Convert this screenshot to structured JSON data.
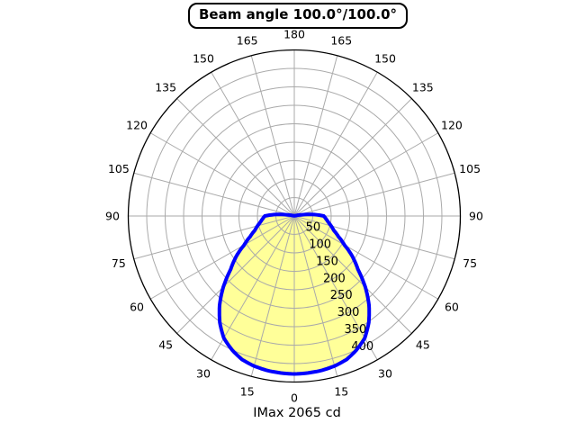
{
  "title": "Beam angle 100.0°/100.0°",
  "caption": "IMax 2065 cd",
  "chart_data": {
    "type": "line",
    "subtype": "polar-intensity-distribution",
    "title": "Beam angle 100.0°/100.0°",
    "annotation": "IMax 2065 cd",
    "beam_angle_deg_c0": 100.0,
    "beam_angle_deg_c90": 100.0,
    "imax_cd": 2065,
    "angle_ticks": [
      0,
      15,
      30,
      45,
      60,
      75,
      90,
      105,
      120,
      135,
      150,
      165,
      180
    ],
    "angle_ticks_mirrored": true,
    "radial_ticks": [
      50,
      100,
      150,
      200,
      250,
      300,
      350,
      400
    ],
    "radial_max": 450,
    "grid": true,
    "symmetric": true,
    "profile": {
      "angles_deg": [
        0,
        5,
        10,
        15,
        20,
        25,
        30,
        35,
        40,
        45,
        50,
        55,
        60,
        65,
        70,
        75,
        80,
        85,
        90,
        95,
        100,
        105,
        110,
        120,
        135,
        150,
        165,
        180
      ],
      "values": [
        428,
        427,
        425,
        421,
        414,
        400,
        382,
        352,
        315,
        272,
        225,
        193,
        157,
        132,
        114,
        103,
        93,
        86,
        80,
        48,
        16,
        5,
        2,
        1,
        1,
        1,
        1,
        1
      ]
    },
    "colors": {
      "fill": "#FFFF99",
      "curve": "#0000FF",
      "grid": "#AAAAAA",
      "axis": "#000000",
      "text": "#000000",
      "background": "#FFFFFF"
    }
  }
}
